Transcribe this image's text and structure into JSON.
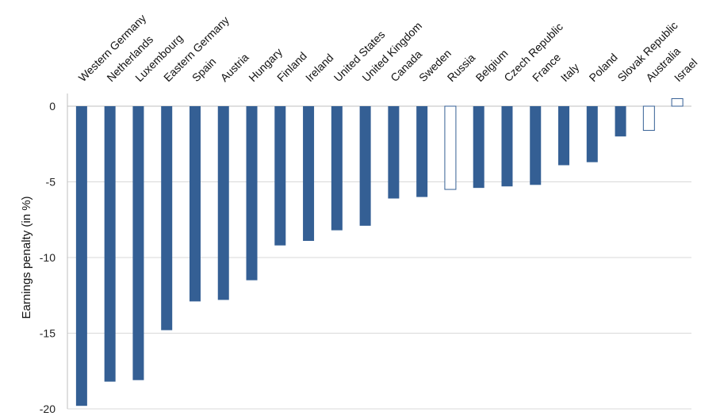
{
  "chart_data": {
    "type": "bar",
    "title": "",
    "xlabel": "",
    "ylabel": "Earnings penalty (in %)",
    "ylim": [
      -20,
      0
    ],
    "yticks": [
      0,
      -5,
      -10,
      -15,
      -20
    ],
    "grid": true,
    "categories": [
      "Western Germany",
      "Netherlands",
      "Luxembourg",
      "Eastern Germany",
      "Spain",
      "Austria",
      "Hungary",
      "Finland",
      "Ireland",
      "United States",
      "United Kingdom",
      "Canada",
      "Sweden",
      "Russia",
      "Belgium",
      "Czech Republic",
      "France",
      "Italy",
      "Poland",
      "Slovak Republic",
      "Australia",
      "Israel"
    ],
    "values": [
      -19.8,
      -18.2,
      -18.1,
      -14.8,
      -12.9,
      -12.8,
      -11.5,
      -9.2,
      -8.9,
      -8.2,
      -7.9,
      -6.1,
      -6.0,
      -5.5,
      -5.4,
      -5.3,
      -5.2,
      -3.9,
      -3.7,
      -2.0,
      -1.6,
      0.5
    ],
    "significant": [
      true,
      true,
      true,
      true,
      true,
      true,
      true,
      true,
      true,
      true,
      true,
      true,
      true,
      false,
      true,
      true,
      true,
      true,
      true,
      true,
      false,
      false
    ],
    "colors": {
      "bar_fill": "#345f94",
      "outline": "#345f94",
      "gridline": "#d9d9d9",
      "axis": "#bfbfbf"
    }
  }
}
